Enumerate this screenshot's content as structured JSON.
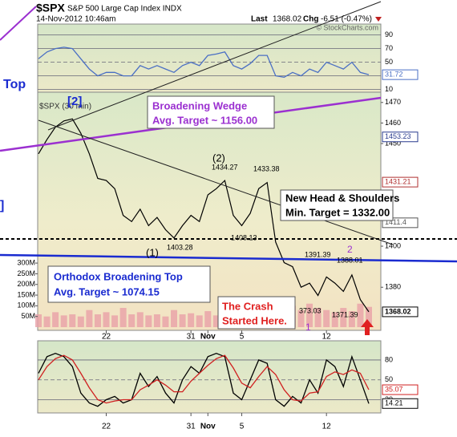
{
  "header": {
    "symbol": "$SPX",
    "name": "S&P 500 Large Cap Index INDX",
    "datetime": "14-Nov-2012 10:46am",
    "last_label": "Last",
    "last": "1368.02",
    "chg_label": "Chg",
    "chg": "-6.51 (-0.47%)",
    "credit": "© StockCharts.com"
  },
  "annotations": [
    "Top",
    "]",
    "[2]",
    "Broadening Wedge",
    "Avg. Target ~ 1156.00",
    "(2)",
    "1434.27",
    "1433.38",
    "New Head & Shoulders",
    "Min. Target = 1332.00",
    "1403.28",
    "1408.13",
    "(1)",
    "1391.39",
    "2",
    "1388.01",
    "Orthodox Broadening Top",
    "Avg. Target ~ 1074.15",
    "The Crash",
    "Started Here.",
    "373.03",
    "1371.39",
    "1"
  ],
  "chart_data": [
    {
      "type": "line",
      "color": "#4a6fc4",
      "ylim": [
        6,
        106
      ],
      "yticks": [
        10,
        30,
        50,
        70,
        90
      ],
      "grid": true,
      "values": [
        55,
        65,
        70,
        72,
        70,
        55,
        40,
        30,
        35,
        35,
        30,
        30,
        45,
        40,
        45,
        40,
        35,
        45,
        50,
        45,
        60,
        62,
        65,
        45,
        40,
        48,
        60,
        60,
        30,
        28,
        35,
        30,
        40,
        35,
        50,
        45,
        40,
        50,
        35,
        31.72
      ],
      "badges": [
        {
          "value": 31.72,
          "color": "#4a6fc4"
        }
      ]
    },
    {
      "type": "line",
      "title": "$SPX (30 min)",
      "color": "#000000",
      "ylim": [
        1359,
        1475
      ],
      "yticks": [
        1380,
        1400,
        1450,
        1460,
        1470
      ],
      "grid": false,
      "categories": [
        null,
        null,
        null,
        null,
        null,
        null,
        null,
        null,
        "22",
        null,
        null,
        null,
        null,
        null,
        null,
        null,
        null,
        null,
        "31",
        null,
        "Nov",
        null,
        null,
        null,
        "5",
        null,
        null,
        null,
        null,
        null,
        null,
        null,
        null,
        null,
        "12",
        null,
        null,
        null,
        null,
        null
      ],
      "values": [
        1445,
        1452,
        1458,
        1461,
        1462,
        1455,
        1445,
        1433,
        1432,
        1428,
        1415,
        1412,
        1418,
        1410,
        1414,
        1408,
        1404,
        1410,
        1415,
        1412,
        1425,
        1428,
        1432,
        1415,
        1410,
        1416,
        1428,
        1431,
        1402,
        1392,
        1390,
        1380,
        1382,
        1376,
        1385,
        1382,
        1378,
        1386,
        1374,
        1368.02
      ],
      "badges": [
        {
          "value": 1453.23,
          "color": "#2a3c8f"
        },
        {
          "value": 1431.21,
          "color": "#b03030"
        },
        {
          "value": 1411.4,
          "color": "#555555"
        },
        {
          "value": 1368.02,
          "color": "#000000"
        }
      ],
      "volume": {
        "color": "#e8a0a8",
        "ylim": [
          -15000000,
          1100000000
        ],
        "yticks": [
          {
            "value": 50000000,
            "label": "50M"
          },
          {
            "value": 100000000,
            "label": "100M"
          },
          {
            "value": 150000000,
            "label": "150M"
          },
          {
            "value": 200000000,
            "label": "200M"
          },
          {
            "value": 250000000,
            "label": "250M"
          },
          {
            "value": 300000000,
            "label": "300M"
          }
        ],
        "values": [
          60000000,
          50000000,
          70000000,
          55000000,
          60000000,
          50000000,
          80000000,
          60000000,
          70000000,
          55000000,
          90000000,
          60000000,
          70000000,
          55000000,
          60000000,
          50000000,
          80000000,
          60000000,
          65000000,
          55000000,
          75000000,
          55000000,
          80000000,
          60000000,
          65000000,
          50000000,
          70000000,
          60000000,
          120000000,
          90000000,
          100000000,
          80000000,
          110000000,
          90000000,
          80000000,
          70000000,
          90000000,
          75000000,
          110000000,
          95000000
        ]
      }
    },
    {
      "type": "line",
      "ylim": [
        0,
        109
      ],
      "yticks": [
        20,
        50,
        80
      ],
      "grid": true,
      "categories": [
        null,
        null,
        null,
        null,
        null,
        null,
        null,
        null,
        "22",
        null,
        null,
        null,
        null,
        null,
        null,
        null,
        null,
        null,
        "31",
        null,
        "Nov",
        null,
        null,
        null,
        "5",
        null,
        null,
        null,
        null,
        null,
        null,
        null,
        null,
        null,
        "12",
        null,
        null,
        null,
        null,
        null
      ],
      "series": [
        {
          "color": "#000000",
          "values": [
            60,
            85,
            90,
            85,
            70,
            30,
            15,
            10,
            20,
            25,
            15,
            20,
            60,
            40,
            55,
            30,
            15,
            50,
            70,
            60,
            85,
            90,
            85,
            30,
            20,
            50,
            80,
            75,
            20,
            10,
            25,
            15,
            50,
            30,
            80,
            70,
            40,
            85,
            50,
            14.21
          ]
        },
        {
          "color": "#d02020",
          "values": [
            50,
            70,
            82,
            87,
            80,
            60,
            38,
            20,
            15,
            18,
            20,
            20,
            35,
            42,
            50,
            42,
            32,
            32,
            48,
            60,
            72,
            82,
            87,
            68,
            45,
            38,
            55,
            70,
            58,
            35,
            20,
            18,
            30,
            32,
            55,
            62,
            58,
            65,
            60,
            35.07
          ]
        }
      ],
      "badges": [
        {
          "value": 35.07,
          "color": "#d02020"
        },
        {
          "value": 14.21,
          "color": "#000000"
        }
      ]
    }
  ]
}
